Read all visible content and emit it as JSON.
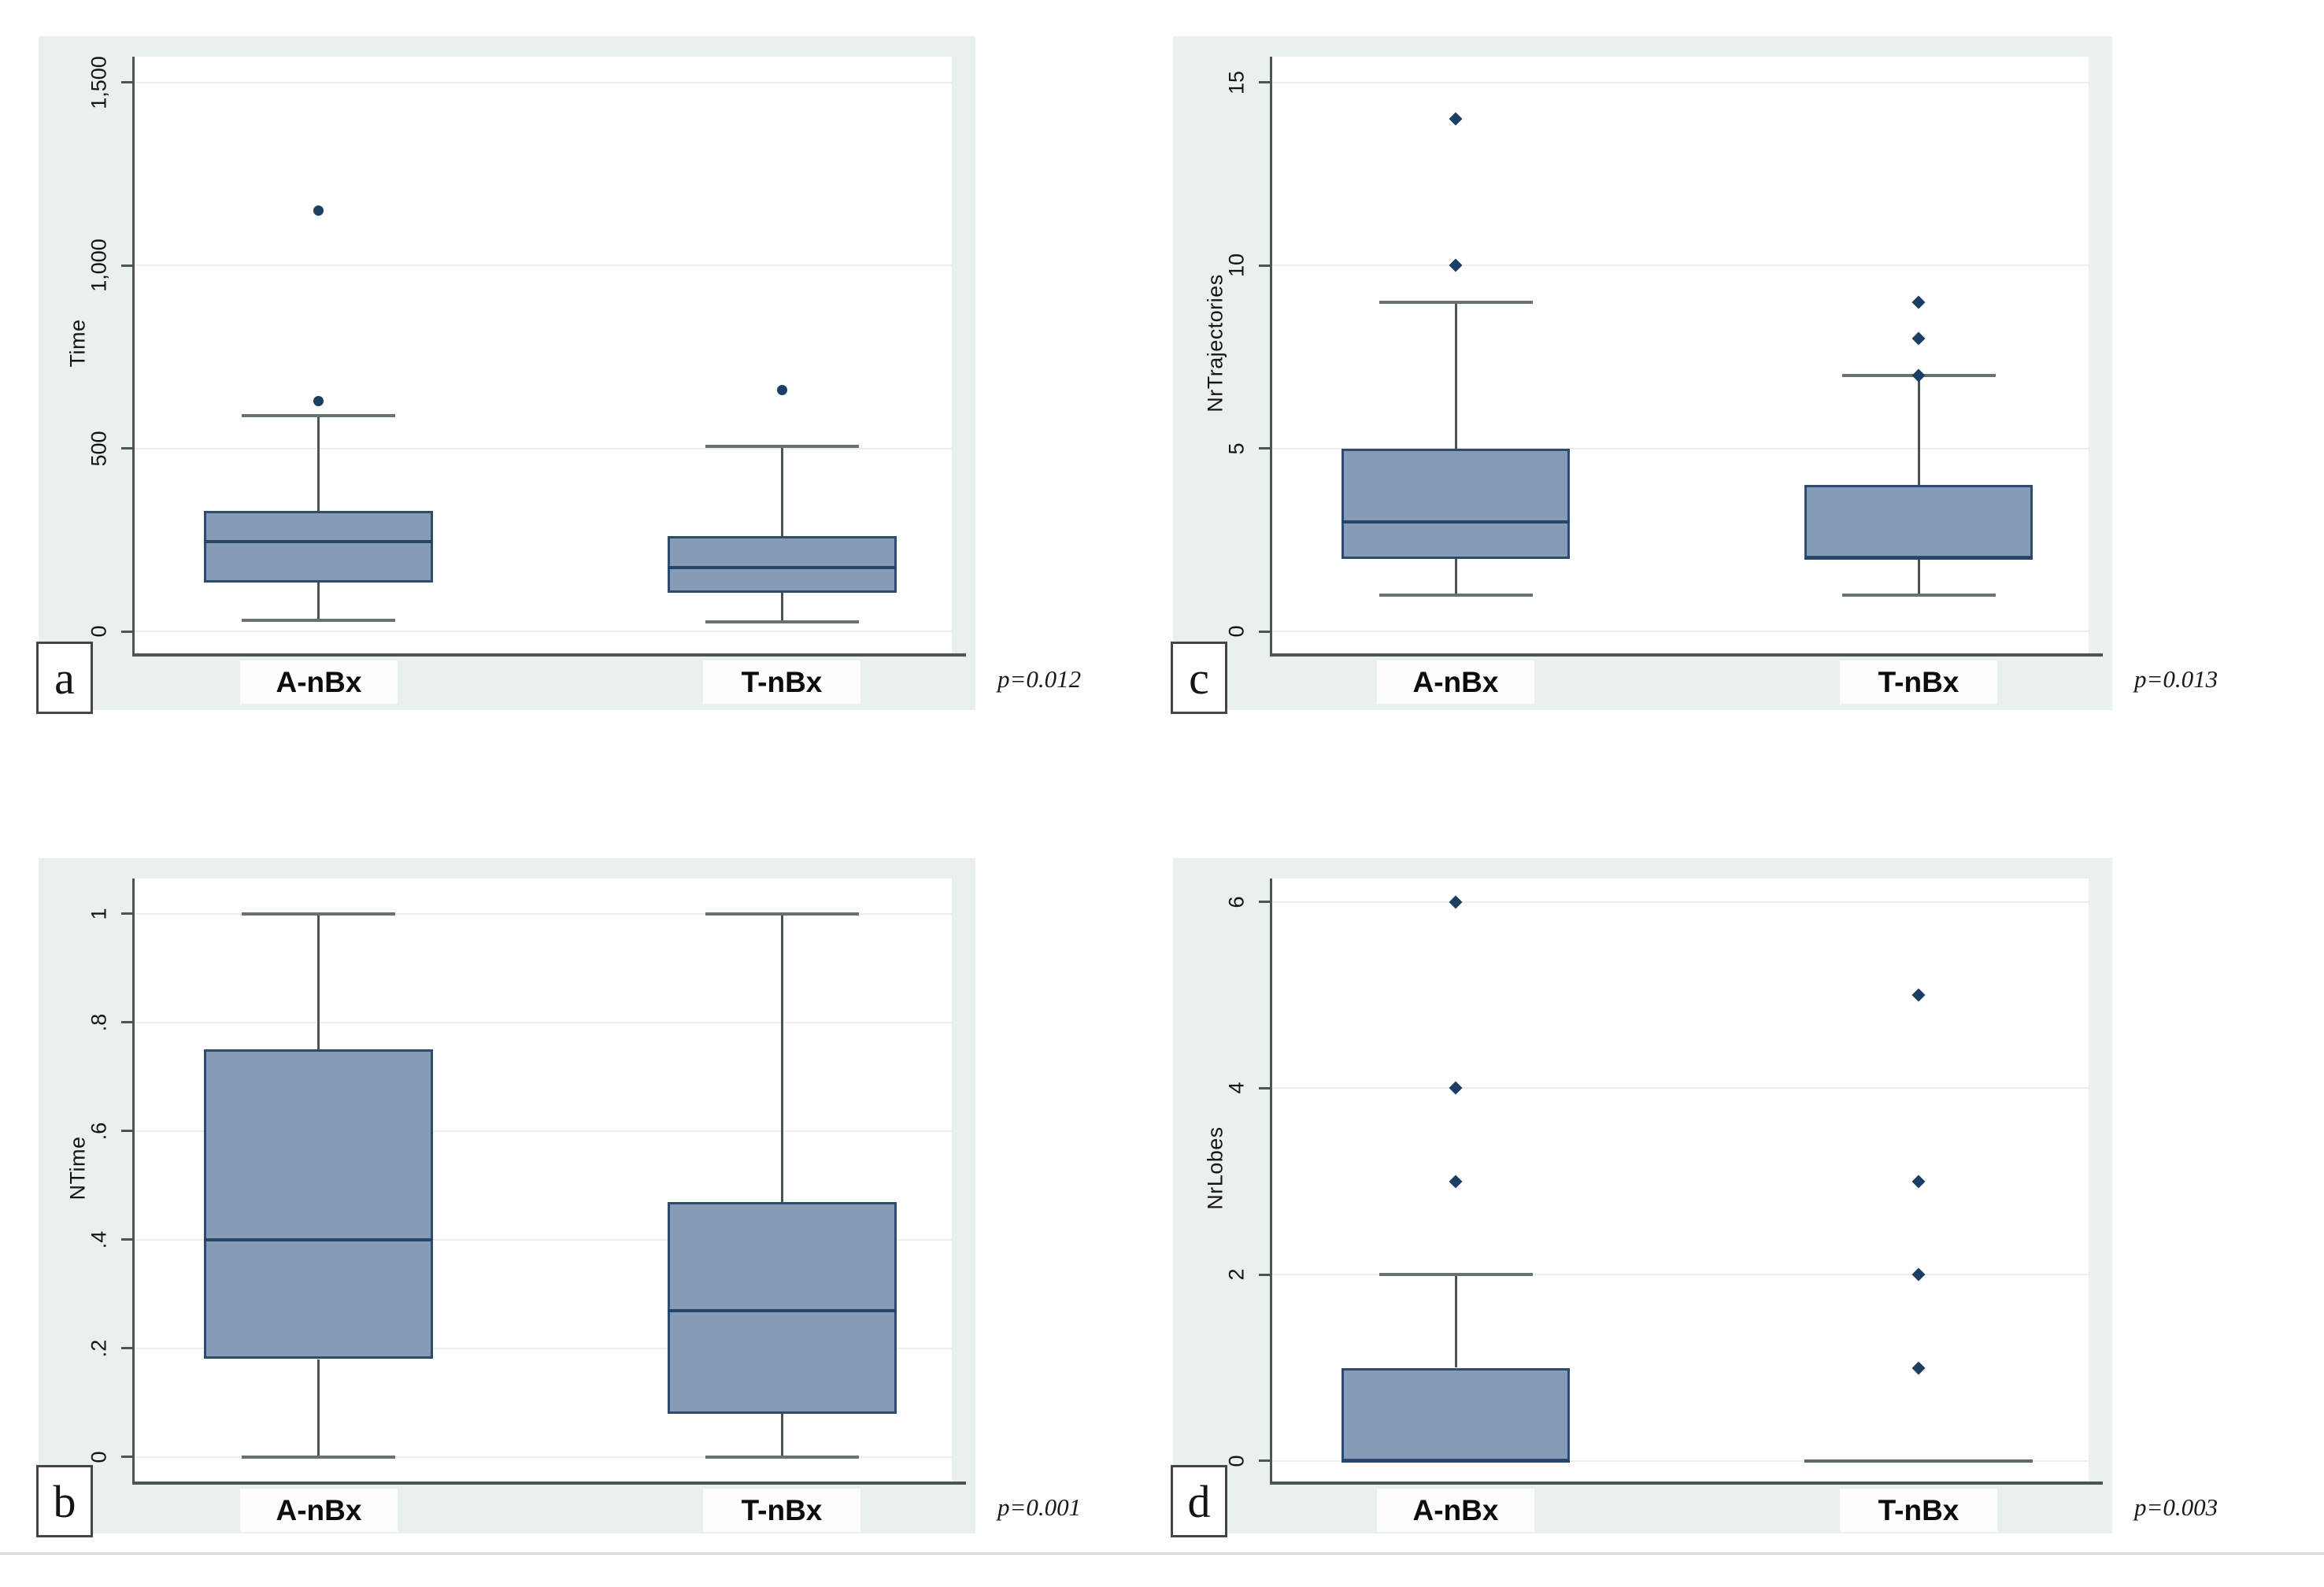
{
  "style": {
    "mint_bg": "#e9f0ed",
    "plot_bg": "#ffffff",
    "grid_color": "#ebeeee",
    "axis_color": "#4b5554",
    "box_fill": "#869cb6",
    "box_border": "#2c4b6e",
    "median_color": "#254668",
    "whisker_color": "#4a5551",
    "cap_color": "#68736f",
    "outlier_color": "#1c3e63",
    "collapsed_box_color": "#5d6b69",
    "category_label_bg": "#fcfdfc",
    "text_color": "#151515",
    "divider_color": "#dbdbdb"
  },
  "chart_data": [
    {
      "type": "box",
      "panel": "a",
      "tag": "a",
      "ylabel": "Time",
      "p_label": "p=0.012",
      "categories": [
        "A-nBx",
        "T-nBx"
      ],
      "yticks": [
        {
          "value": 0,
          "label": "0"
        },
        {
          "value": 500,
          "label": "500"
        },
        {
          "value": 1000,
          "label": "1,000"
        },
        {
          "value": 1500,
          "label": "1,500"
        }
      ],
      "ylim": [
        -60,
        1570
      ],
      "grid": true,
      "marker": "circle",
      "layout_hint": "top-left",
      "series": [
        {
          "name": "A-nBx",
          "q1": 135,
          "median": 245,
          "q3": 330,
          "whisker_low": 30,
          "whisker_high": 590,
          "outliers": [
            630,
            1150
          ]
        },
        {
          "name": "T-nBx",
          "q1": 105,
          "median": 175,
          "q3": 260,
          "whisker_low": 25,
          "whisker_high": 505,
          "outliers": [
            660
          ]
        }
      ]
    },
    {
      "type": "box",
      "panel": "b",
      "tag": "b",
      "ylabel": "NTime",
      "p_label": "p=0.001",
      "categories": [
        "A-nBx",
        "T-nBx"
      ],
      "yticks": [
        {
          "value": 0,
          "label": "0"
        },
        {
          "value": 0.2,
          "label": ".2"
        },
        {
          "value": 0.4,
          "label": ".4"
        },
        {
          "value": 0.6,
          "label": ".6"
        },
        {
          "value": 0.8,
          "label": ".8"
        },
        {
          "value": 1,
          "label": "1"
        }
      ],
      "ylim": [
        -0.045,
        1.065
      ],
      "grid": true,
      "marker": "circle",
      "layout_hint": "bottom-left",
      "series": [
        {
          "name": "A-nBx",
          "q1": 0.18,
          "median": 0.4,
          "q3": 0.75,
          "whisker_low": 0,
          "whisker_high": 1,
          "outliers": []
        },
        {
          "name": "T-nBx",
          "q1": 0.08,
          "median": 0.27,
          "q3": 0.47,
          "whisker_low": 0,
          "whisker_high": 1,
          "outliers": []
        }
      ]
    },
    {
      "type": "box",
      "panel": "c",
      "tag": "c",
      "ylabel": "NrTrajectories",
      "p_label": "p=0.013",
      "categories": [
        "A-nBx",
        "T-nBx"
      ],
      "yticks": [
        {
          "value": 0,
          "label": "0"
        },
        {
          "value": 5,
          "label": "5"
        },
        {
          "value": 10,
          "label": "10"
        },
        {
          "value": 15,
          "label": "15"
        }
      ],
      "ylim": [
        -0.6,
        15.7
      ],
      "grid": true,
      "marker": "diamond",
      "layout_hint": "top-right",
      "series": [
        {
          "name": "A-nBx",
          "q1": 2,
          "median": 3,
          "q3": 5,
          "whisker_low": 1,
          "whisker_high": 9,
          "outliers": [
            10,
            14
          ]
        },
        {
          "name": "T-nBx",
          "q1": 2,
          "median": 2,
          "q3": 4,
          "whisker_low": 1,
          "whisker_high": 7,
          "outliers": [
            7,
            8,
            9
          ]
        }
      ]
    },
    {
      "type": "box",
      "panel": "d",
      "tag": "d",
      "ylabel": "NrLobes",
      "p_label": "p=0.003",
      "categories": [
        "A-nBx",
        "T-nBx"
      ],
      "yticks": [
        {
          "value": 0,
          "label": "0"
        },
        {
          "value": 2,
          "label": "2"
        },
        {
          "value": 4,
          "label": "4"
        },
        {
          "value": 6,
          "label": "6"
        }
      ],
      "ylim": [
        -0.22,
        6.25
      ],
      "grid": true,
      "marker": "diamond",
      "layout_hint": "bottom-right",
      "series": [
        {
          "name": "A-nBx",
          "q1": 0,
          "median": 0,
          "q3": 1,
          "whisker_low": 0,
          "whisker_high": 2,
          "outliers": [
            3,
            4,
            6
          ]
        },
        {
          "name": "T-nBx",
          "q1": 0,
          "median": 0,
          "q3": 0,
          "whisker_low": 0,
          "whisker_high": 0,
          "outliers": [
            1,
            2,
            3,
            5
          ]
        }
      ]
    }
  ]
}
